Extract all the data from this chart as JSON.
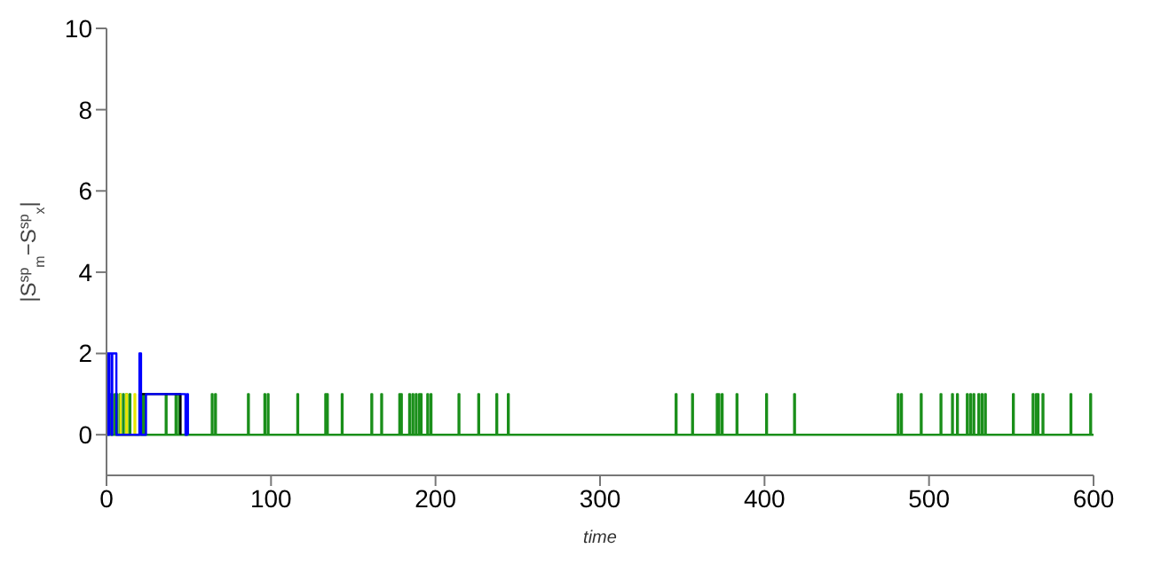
{
  "chart_data": {
    "type": "step",
    "xlabel": "time",
    "ylabel": "|S$^{sp}$$_{m}$−S$^{sp}$$_{x}$|",
    "xlim": [
      0,
      600
    ],
    "ylim": [
      -1,
      10
    ],
    "xticks": [
      0,
      100,
      200,
      300,
      400,
      500,
      600
    ],
    "yticks": [
      0,
      2,
      4,
      6,
      8,
      10
    ],
    "marker": "none",
    "line_style": "solid",
    "series": [
      {
        "color": "#1a8f1a",
        "x": [
          0,
          0.5,
          1,
          1.5,
          2,
          2.5,
          3,
          3.5,
          5,
          5.5,
          6,
          6.5,
          8,
          8.5,
          10,
          10.5,
          12,
          12.5,
          14,
          14.5,
          20,
          20.5,
          21,
          21.5,
          22,
          22.5,
          23,
          23.5,
          36,
          36.5,
          42,
          42.5,
          44,
          44.5,
          64,
          64.5,
          66,
          66.5,
          86,
          86.5,
          96,
          96.5,
          98,
          98.5,
          116,
          116.5,
          133,
          133.5,
          134,
          134.5,
          143,
          143.5,
          161,
          161.5,
          167,
          167.5,
          178,
          178.5,
          179,
          179.5,
          184,
          184.5,
          186,
          186.5,
          188,
          188.5,
          190,
          190.5,
          191,
          191.5,
          195,
          195.5,
          197,
          197.5,
          214,
          214.5,
          226,
          226.5,
          237,
          237.5,
          244,
          244.5,
          346,
          346.5,
          356,
          356.5,
          371,
          371.5,
          372,
          372.5,
          374,
          374.5,
          383,
          383.5,
          401,
          401.5,
          418,
          418.5,
          481,
          481.5,
          483,
          483.5,
          495,
          495.5,
          507,
          507.5,
          514,
          514.5,
          517,
          517.5,
          523,
          523.5,
          525,
          525.5,
          527,
          527.5,
          530,
          530.5,
          532,
          532.5,
          534,
          534.5,
          551,
          551.5,
          563,
          563.5,
          565,
          565.5,
          566,
          566.5,
          569,
          569.5,
          586,
          586.5,
          598,
          598.5,
          600
        ],
        "values": [
          1,
          0,
          1,
          0,
          1,
          0,
          1,
          0,
          1,
          0,
          1,
          0,
          1,
          0,
          1,
          0,
          1,
          0,
          1,
          0,
          1,
          0,
          1,
          0,
          1,
          0,
          1,
          0,
          1,
          0,
          1,
          0,
          1,
          0,
          1,
          0,
          1,
          0,
          1,
          0,
          1,
          0,
          1,
          0,
          1,
          0,
          1,
          0,
          1,
          0,
          1,
          0,
          1,
          0,
          1,
          0,
          1,
          0,
          1,
          0,
          1,
          0,
          1,
          0,
          1,
          0,
          1,
          0,
          1,
          0,
          1,
          0,
          1,
          0,
          1,
          0,
          1,
          0,
          1,
          0,
          1,
          0,
          1,
          0,
          1,
          0,
          1,
          0,
          1,
          0,
          1,
          0,
          1,
          0,
          1,
          0,
          1,
          0,
          1,
          0,
          1,
          0,
          1,
          0,
          1,
          0,
          1,
          0,
          1,
          0,
          1,
          0,
          1,
          0,
          1,
          0,
          1,
          0,
          1,
          0,
          1,
          0,
          1,
          0,
          1,
          0,
          1,
          0,
          1,
          0,
          1,
          0,
          1,
          0,
          1,
          0,
          0
        ]
      },
      {
        "color": "#e6e600",
        "x": [
          8,
          8.5,
          12,
          12.5,
          17,
          17.5
        ],
        "values": [
          1,
          0,
          1,
          0,
          1,
          0
        ]
      },
      {
        "color": "#000000",
        "x": [
          20,
          45
        ],
        "values": [
          1,
          0
        ]
      },
      {
        "color": "#0000ff",
        "x": [
          0,
          1,
          1.5,
          3,
          3.5,
          6,
          6.5,
          20,
          21,
          24,
          48,
          49,
          49.5
        ],
        "values": [
          2,
          0,
          2,
          0,
          2,
          0,
          0,
          2,
          0,
          1,
          0,
          1,
          0
        ]
      }
    ]
  }
}
